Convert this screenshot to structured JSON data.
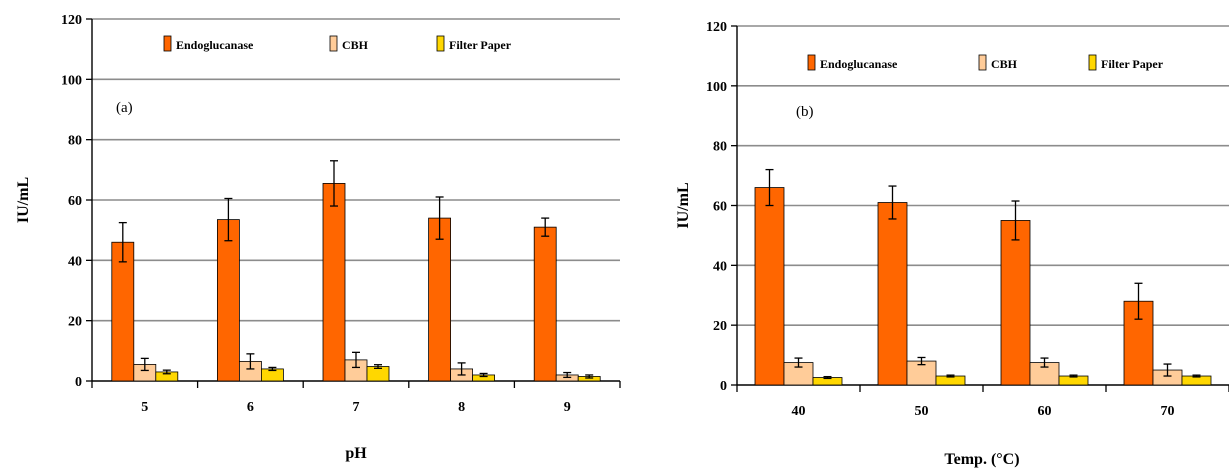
{
  "chart_data": [
    {
      "type": "bar",
      "panel_label": "(a)",
      "xlabel": "pH",
      "ylabel": "IU/mL",
      "categories": [
        "5",
        "6",
        "7",
        "8",
        "9"
      ],
      "ylim": [
        0,
        120
      ],
      "yticks": [
        0,
        20,
        40,
        60,
        80,
        100,
        120
      ],
      "grid": true,
      "legend_position": "top",
      "series": [
        {
          "name": "Endoglucanase",
          "color": "#ff6600",
          "values": [
            46,
            53.5,
            65.5,
            54,
            51
          ],
          "errors": [
            6.5,
            7,
            7.5,
            7,
            3
          ]
        },
        {
          "name": "CBH",
          "color": "#ffcc99",
          "values": [
            5.5,
            6.5,
            7,
            4,
            2
          ],
          "errors": [
            2,
            2.5,
            2.5,
            2,
            0.8
          ]
        },
        {
          "name": "Filter Paper",
          "color": "#ffd700",
          "values": [
            3,
            4,
            4.8,
            2,
            1.5
          ],
          "errors": [
            0.6,
            0.5,
            0.6,
            0.5,
            0.5
          ]
        }
      ]
    },
    {
      "type": "bar",
      "panel_label": "(b)",
      "xlabel": "Temp. (°C)",
      "ylabel": "IU/mL",
      "categories": [
        "40",
        "50",
        "60",
        "70"
      ],
      "ylim": [
        0,
        120
      ],
      "yticks": [
        0,
        20,
        40,
        60,
        80,
        100,
        120
      ],
      "grid": true,
      "legend_position": "top",
      "series": [
        {
          "name": "Endoglucanase",
          "color": "#ff6600",
          "values": [
            66,
            61,
            55,
            28
          ],
          "errors": [
            6,
            5.5,
            6.5,
            6
          ]
        },
        {
          "name": "CBH",
          "color": "#ffcc99",
          "values": [
            7.5,
            8,
            7.5,
            5
          ],
          "errors": [
            1.5,
            1.2,
            1.5,
            2
          ]
        },
        {
          "name": "Filter Paper",
          "color": "#ffd700",
          "values": [
            2.5,
            3,
            3,
            3
          ],
          "errors": [
            0.3,
            0.3,
            0.3,
            0.3
          ]
        }
      ]
    }
  ]
}
